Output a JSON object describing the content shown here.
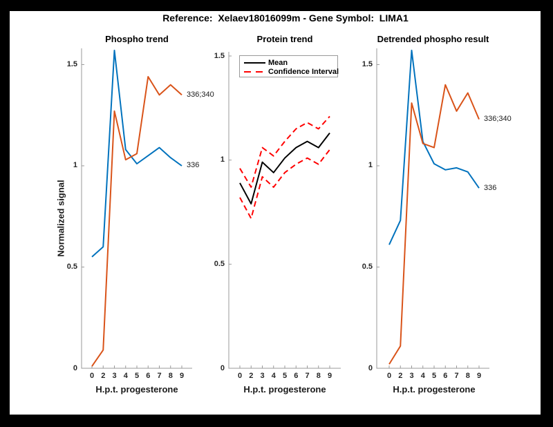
{
  "figure": {
    "title": "Reference:  Xelaev18016099m - Gene Symbol:  LIMA1"
  },
  "palette": {
    "blue": "#0072BD",
    "orange": "#D95319",
    "red": "#FF0000",
    "black": "#000000",
    "axis_gray": "#999999",
    "text_dark": "#262626",
    "frame": "#000000",
    "canvas": "#FFFFFF"
  },
  "axis": {
    "xlabel": "H.p.t. progesterone",
    "ylabel": "Normalized signal",
    "x_tick_labels": [
      "0",
      "2",
      "3",
      "4",
      "5",
      "6",
      "7",
      "8",
      "9"
    ],
    "y_tick_labels": [
      "0",
      "0.5",
      "1",
      "1.5"
    ],
    "y_tick_values": [
      0,
      0.5,
      1,
      1.5
    ]
  },
  "chart_data": [
    {
      "type": "line",
      "title": "Phospho trend",
      "xlabel": "H.p.t. progesterone",
      "ylabel": "Normalized signal",
      "categories": [
        "0",
        "2",
        "3",
        "4",
        "5",
        "6",
        "7",
        "8",
        "9"
      ],
      "ylim": [
        0,
        1.58
      ],
      "grid": false,
      "series": [
        {
          "name": "336",
          "color": "blue",
          "style": "solid",
          "values": [
            0.55,
            0.6,
            1.57,
            1.08,
            1.01,
            1.05,
            1.09,
            1.04,
            1.0
          ],
          "end_label": "336"
        },
        {
          "name": "336;340",
          "color": "orange",
          "style": "solid",
          "values": [
            0.01,
            0.09,
            1.27,
            1.03,
            1.06,
            1.44,
            1.35,
            1.4,
            1.35
          ],
          "end_label": "336;340"
        }
      ]
    },
    {
      "type": "line",
      "title": "Protein trend",
      "xlabel": "H.p.t. progesterone",
      "categories": [
        "0",
        "2",
        "3",
        "4",
        "5",
        "6",
        "7",
        "8",
        "9"
      ],
      "ylim": [
        0,
        1.52
      ],
      "grid": false,
      "legend": {
        "position": "top-left",
        "entries": [
          {
            "label": "Mean",
            "color": "black",
            "style": "solid"
          },
          {
            "label": "Confidence Interval",
            "color": "red",
            "style": "dashed"
          }
        ]
      },
      "series": [
        {
          "name": "Mean",
          "color": "black",
          "style": "solid",
          "values": [
            0.89,
            0.79,
            0.99,
            0.94,
            1.01,
            1.06,
            1.09,
            1.06,
            1.13
          ]
        },
        {
          "name": "Confidence Interval upper",
          "color": "red",
          "style": "dashed",
          "values": [
            0.96,
            0.87,
            1.06,
            1.02,
            1.09,
            1.15,
            1.18,
            1.15,
            1.21
          ]
        },
        {
          "name": "Confidence Interval lower",
          "color": "red",
          "style": "dashed",
          "values": [
            0.82,
            0.72,
            0.92,
            0.87,
            0.94,
            0.98,
            1.01,
            0.98,
            1.05
          ]
        }
      ]
    },
    {
      "type": "line",
      "title": "Detrended phospho result",
      "xlabel": "H.p.t. progesterone",
      "categories": [
        "0",
        "2",
        "3",
        "4",
        "5",
        "6",
        "7",
        "8",
        "9"
      ],
      "ylim": [
        0,
        1.58
      ],
      "grid": false,
      "series": [
        {
          "name": "336",
          "color": "blue",
          "style": "solid",
          "values": [
            0.61,
            0.73,
            1.57,
            1.12,
            1.01,
            0.98,
            0.99,
            0.97,
            0.89
          ],
          "end_label": "336"
        },
        {
          "name": "336;340",
          "color": "orange",
          "style": "solid",
          "values": [
            0.02,
            0.11,
            1.31,
            1.11,
            1.09,
            1.4,
            1.27,
            1.36,
            1.23
          ],
          "end_label": "336;340"
        }
      ]
    }
  ]
}
